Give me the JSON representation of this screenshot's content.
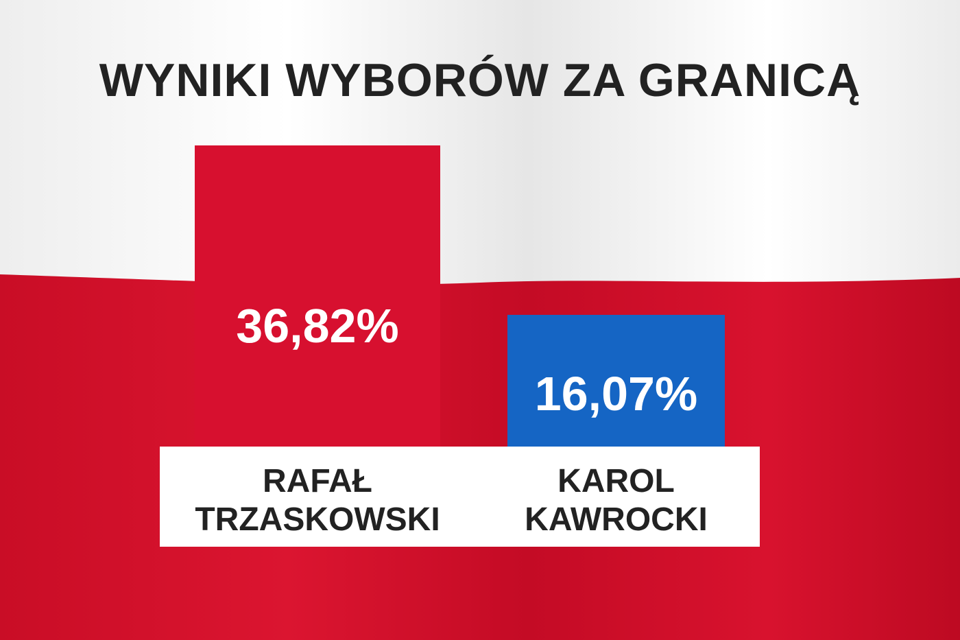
{
  "chart_data": {
    "type": "bar",
    "title": "WYNIKI WYBORÓW ZA GRANICĄ",
    "categories": [
      "RAFAŁ TRZASKOWSKI",
      "KAROL KAWROCKI"
    ],
    "values": [
      36.82,
      16.07
    ],
    "value_labels": [
      "36,82%",
      "16,07%"
    ],
    "colors": [
      "#d7102f",
      "#1565c4"
    ]
  }
}
